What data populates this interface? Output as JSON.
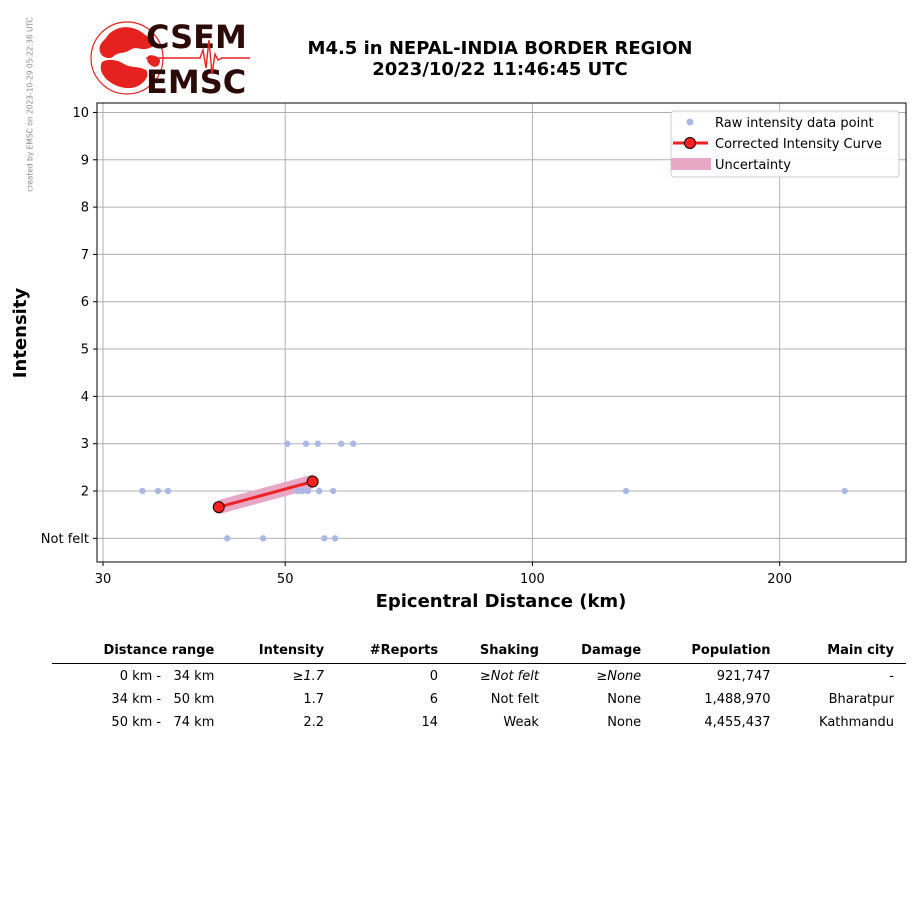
{
  "logo": {
    "line1": "CSEM",
    "line2": "EMSC",
    "accent_color": "#e5221f",
    "dark_color": "#2b0a08"
  },
  "watermark": "created by EMSC on 2023-10-29 05:22:36 UTC",
  "header": {
    "title": "M4.5 in NEPAL-INDIA BORDER REGION",
    "subtitle": "2023/10/22 11:46:45 UTC"
  },
  "chart_data": {
    "type": "scatter",
    "xlabel": "Epicentral Distance (km)",
    "ylabel": "Intensity",
    "xscale": "log",
    "xlim": [
      29.5,
      285
    ],
    "ylim": [
      0.5,
      10.2
    ],
    "xticks": [
      30,
      50,
      100,
      200
    ],
    "yticks": [
      {
        "value": 1,
        "label": "Not felt"
      },
      {
        "value": 2,
        "label": "2"
      },
      {
        "value": 3,
        "label": "3"
      },
      {
        "value": 4,
        "label": "4"
      },
      {
        "value": 5,
        "label": "5"
      },
      {
        "value": 6,
        "label": "6"
      },
      {
        "value": 7,
        "label": "7"
      },
      {
        "value": 8,
        "label": "8"
      },
      {
        "value": 9,
        "label": "9"
      },
      {
        "value": 10,
        "label": "10"
      }
    ],
    "grid": true,
    "legend_position": "top-right",
    "series": [
      {
        "name": "Raw intensity data point",
        "kind": "points",
        "color": "#aab8e6",
        "x": [
          33.5,
          35.0,
          36.0,
          50.3,
          53.0,
          54.8,
          58.5,
          60.5,
          51.8,
          52.5,
          53.3,
          55.0,
          57.2,
          130.0,
          240.0,
          42.5,
          47.0,
          55.8,
          57.5
        ],
        "y": [
          2,
          2,
          2,
          3,
          3,
          3,
          3,
          3,
          2,
          2,
          2,
          2,
          2,
          2,
          2,
          1,
          1,
          1,
          1
        ]
      },
      {
        "name": "Corrected Intensity Curve",
        "kind": "line",
        "color": "#ee2222",
        "marker_color": "#ff2020",
        "x": [
          41.5,
          54.0
        ],
        "y": [
          1.66,
          2.2
        ]
      },
      {
        "name": "Uncertainty",
        "kind": "band",
        "color": "#e8a7c5",
        "x": [
          41.5,
          54.0
        ],
        "y_low": [
          1.52,
          2.06
        ],
        "y_high": [
          1.8,
          2.34
        ]
      }
    ]
  },
  "table": {
    "headers": [
      "Distance range",
      "Intensity",
      "#Reports",
      "Shaking",
      "Damage",
      "Population",
      "Main city"
    ],
    "rows": [
      {
        "range": "0 km -   34 km",
        "intensity": "≥1.7",
        "reports": "0",
        "shaking": "≥Not felt",
        "damage": "≥None",
        "population": "921,747",
        "city": "-"
      },
      {
        "range": "34 km -   50 km",
        "intensity": "1.7",
        "reports": "6",
        "shaking": "Not felt",
        "damage": "None",
        "population": "1,488,970",
        "city": "Bharatpur"
      },
      {
        "range": "50 km -   74 km",
        "intensity": "2.2",
        "reports": "14",
        "shaking": "Weak",
        "damage": "None",
        "population": "4,455,437",
        "city": "Kathmandu"
      }
    ]
  }
}
